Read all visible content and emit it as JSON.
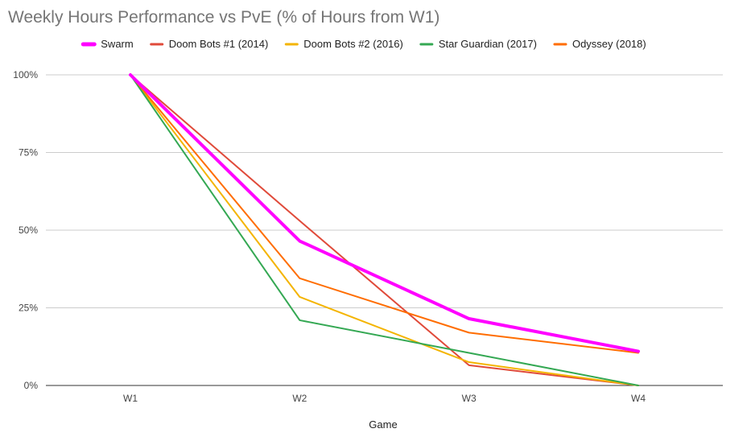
{
  "chart_data": {
    "type": "line",
    "title": "Weekly Hours Performance vs PvE (% of Hours from W1)",
    "xlabel": "Game",
    "ylabel": "",
    "categories": [
      "W1",
      "W2",
      "W3",
      "W4"
    ],
    "y_ticks": [
      "0%",
      "25%",
      "50%",
      "75%",
      "100%"
    ],
    "ylim": [
      0,
      100
    ],
    "grid": true,
    "legend_position": "top",
    "series": [
      {
        "name": "Swarm",
        "color": "#ff00ff",
        "emphasis": true,
        "values": [
          100,
          46.5,
          21.5,
          11
        ]
      },
      {
        "name": "Doom Bots #1 (2014)",
        "color": "#e04a3a",
        "values": [
          100,
          53,
          6.5,
          0
        ]
      },
      {
        "name": "Doom Bots #2 (2016)",
        "color": "#f4b400",
        "values": [
          100,
          28.5,
          7.5,
          0
        ]
      },
      {
        "name": "Star Guardian (2017)",
        "color": "#34a853",
        "values": [
          100,
          21,
          10.5,
          0
        ]
      },
      {
        "name": "Odyssey (2018)",
        "color": "#ff6d00",
        "values": [
          100,
          34.5,
          17,
          10.5
        ]
      }
    ]
  }
}
